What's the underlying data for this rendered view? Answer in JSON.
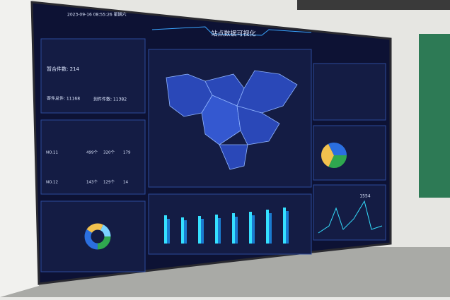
{
  "header": {
    "datetime": "2023-09-16 08:55:26 星期六",
    "title": "站点数据可视化"
  },
  "summary": {
    "pending": "暂合件数: 214",
    "sent": "寄件总件: 11168",
    "received": "到件件数: 11382"
  },
  "table": {
    "rows": [
      [
        "NO.11",
        "499个",
        "320个",
        "179"
      ],
      [
        "NO.12",
        "143个",
        "129个",
        "14"
      ]
    ]
  },
  "right_chart": {
    "peak": "1554"
  }
}
